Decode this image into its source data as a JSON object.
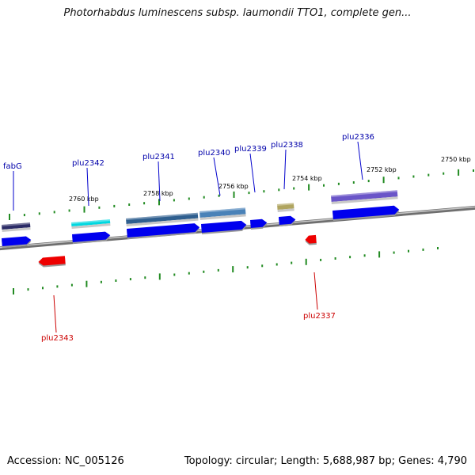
{
  "title": "Photorhabdus luminescens subsp. laumondii TTO1, complete gen...",
  "footer": {
    "accession": "Accession: NC_005126",
    "summary": "Topology: circular; Length: 5,688,987 bp; Genes: 4,790"
  },
  "colors": {
    "forward_strand": "#0000ee",
    "reverse_strand": "#ee0000",
    "tick": "#228b22",
    "backbone": "#888888",
    "cog_colors": [
      "#2b2b66",
      "#00d8e0",
      "#2f5f8f",
      "#4a82b8",
      "#b0a560",
      "#6a55c8"
    ]
  },
  "ticks": [
    {
      "label": "2760 kbp"
    },
    {
      "label": "2758 kbp"
    },
    {
      "label": "2756 kbp"
    },
    {
      "label": "2754 kbp"
    },
    {
      "label": "2752 kbp"
    },
    {
      "label": "2750 kbp"
    }
  ],
  "genes": [
    {
      "name": "fabG",
      "strand": "forward"
    },
    {
      "name": "plu2342",
      "strand": "forward"
    },
    {
      "name": "plu2341",
      "strand": "forward"
    },
    {
      "name": "plu2340",
      "strand": "forward"
    },
    {
      "name": "plu2339",
      "strand": "forward"
    },
    {
      "name": "plu2338",
      "strand": "forward"
    },
    {
      "name": "plu2336",
      "strand": "forward"
    },
    {
      "name": "plu2343",
      "strand": "reverse"
    },
    {
      "name": "plu2337",
      "strand": "reverse"
    }
  ]
}
